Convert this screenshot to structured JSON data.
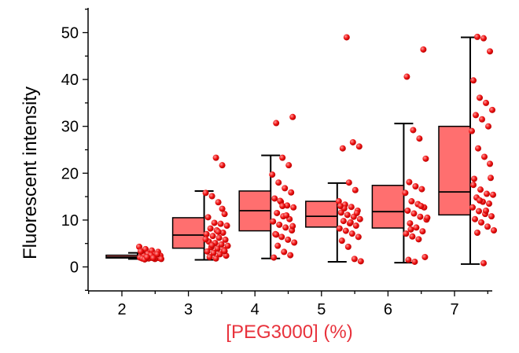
{
  "chart_data": {
    "type": "box",
    "xlabel": "[PEG3000] (%)",
    "ylabel": "Fluorescent intensity",
    "categories": [
      "2",
      "3",
      "4",
      "5",
      "6",
      "7"
    ],
    "ylim": [
      -5,
      55
    ],
    "yticks": [
      0,
      10,
      20,
      30,
      40,
      50
    ],
    "grid": false,
    "colors": {
      "box_fill": "#FF6F6F",
      "points": "#EE1111",
      "xlabel": "#E8323C",
      "axis": "#000000"
    },
    "boxes": [
      {
        "category": "2",
        "whisker_low": 1.7,
        "q1": 1.9,
        "median": 2.1,
        "q3": 2.5,
        "whisker_high": 3.0
      },
      {
        "category": "3",
        "whisker_low": 1.5,
        "q1": 4.0,
        "median": 6.8,
        "q3": 10.5,
        "whisker_high": 16.2
      },
      {
        "category": "4",
        "whisker_low": 1.8,
        "q1": 7.7,
        "median": 12.0,
        "q3": 16.2,
        "whisker_high": 23.8
      },
      {
        "category": "5",
        "whisker_low": 1.1,
        "q1": 8.5,
        "median": 10.8,
        "q3": 14.0,
        "whisker_high": 17.9
      },
      {
        "category": "6",
        "whisker_low": 0.9,
        "q1": 8.3,
        "median": 11.8,
        "q3": 17.4,
        "whisker_high": 30.6
      },
      {
        "category": "7",
        "whisker_low": 0.6,
        "q1": 11.1,
        "median": 16.0,
        "q3": 30.0,
        "whisker_high": 49.0
      }
    ],
    "points": [
      {
        "category": "2",
        "values": [
          4.3,
          3.8,
          3.5,
          3.2,
          3.0,
          2.8,
          2.6,
          2.4,
          2.3,
          2.2,
          2.1,
          2.0,
          2.0,
          1.9,
          1.9,
          1.8,
          1.8,
          1.7,
          1.7,
          1.6,
          2.5,
          2.7,
          3.3,
          2.1,
          1.9
        ]
      },
      {
        "category": "3",
        "values": [
          23.3,
          21.7,
          15.8,
          15.1,
          13.8,
          11.3,
          10.6,
          9.4,
          9.2,
          8.8,
          8.2,
          7.8,
          7.3,
          7.0,
          6.6,
          6.2,
          5.8,
          5.4,
          5.1,
          4.8,
          4.5,
          4.2,
          3.9,
          3.6,
          3.3,
          3.0,
          2.7,
          2.4,
          2.1,
          1.8,
          12.4,
          5.9,
          4.6,
          7.5,
          3.4
        ]
      },
      {
        "category": "4",
        "values": [
          32.0,
          30.7,
          23.3,
          21.7,
          19.7,
          18.0,
          16.8,
          15.9,
          14.6,
          13.9,
          13.1,
          12.7,
          11.5,
          10.8,
          10.2,
          9.7,
          9.0,
          8.4,
          7.8,
          7.0,
          6.4,
          5.8,
          5.2,
          4.5,
          3.2,
          2.5,
          2.0,
          14.1,
          11.0,
          8.7,
          6.9,
          13.0
        ]
      },
      {
        "category": "5",
        "values": [
          49.0,
          26.6,
          25.7,
          25.3,
          18.0,
          16.4,
          14.0,
          13.3,
          12.8,
          12.0,
          11.6,
          11.1,
          10.7,
          10.2,
          9.8,
          9.3,
          8.8,
          8.2,
          7.7,
          7.1,
          6.4,
          5.6,
          4.3,
          1.7,
          1.2,
          12.5,
          9.5,
          11.5,
          13.0
        ]
      },
      {
        "category": "6",
        "values": [
          46.4,
          40.6,
          29.2,
          27.4,
          23.1,
          18.1,
          17.2,
          16.6,
          15.8,
          14.0,
          13.4,
          12.7,
          12.0,
          11.4,
          10.7,
          10.1,
          9.3,
          8.4,
          7.6,
          7.1,
          6.5,
          5.9,
          2.1,
          1.5,
          1.1,
          13.0,
          10.5,
          8.0
        ]
      },
      {
        "category": "7",
        "values": [
          49.1,
          48.8,
          46.0,
          39.8,
          36.1,
          35.0,
          33.5,
          32.4,
          31.5,
          30.0,
          29.0,
          25.3,
          23.5,
          19.0,
          18.8,
          16.5,
          15.6,
          15.4,
          14.8,
          13.9,
          13.5,
          12.7,
          11.9,
          11.3,
          10.8,
          10.2,
          9.5,
          8.6,
          7.8,
          7.3,
          0.8,
          22.0,
          17.5,
          14.2,
          12.0
        ]
      }
    ]
  }
}
